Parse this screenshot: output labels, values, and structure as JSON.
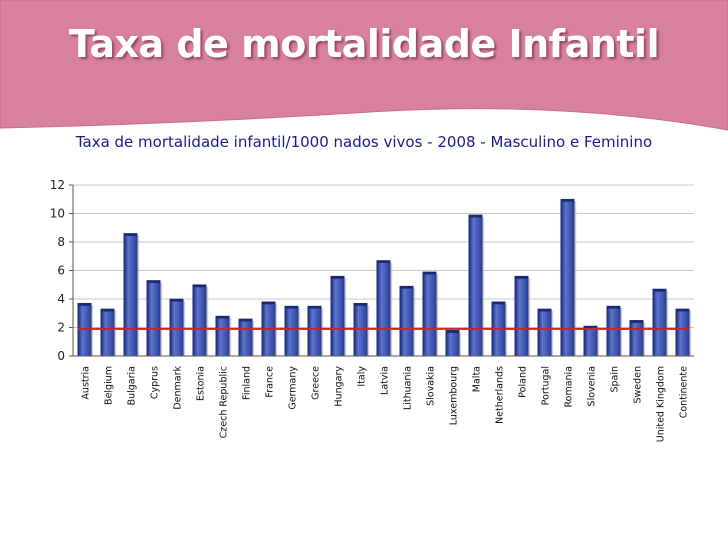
{
  "slide": {
    "title": "Taxa de mortalidade Infantil"
  },
  "colors": {
    "banner": "#d8819f",
    "banner_edge": "#c46a8c",
    "bar_fill": "#2a3f9a",
    "bar_highlight": "#5d75cf",
    "bar_top": "#1a2a70",
    "reference_line": "#c0282d",
    "title_text": "#1a1a8c",
    "grid": "#c8c8c8"
  },
  "chart_data": {
    "type": "bar",
    "title": "Taxa de mortalidade infantil/1000 nados vivos - 2008 - Masculino e Feminino",
    "xlabel": "",
    "ylabel": "",
    "ylim": [
      0,
      12
    ],
    "yticks": [
      "0",
      "2",
      "4",
      "6",
      "8",
      "10",
      "12"
    ],
    "grid": true,
    "categories": [
      "Austria",
      "Belgium",
      "Bulgaria",
      "Cyprus",
      "Denmark",
      "Estonia",
      "Czech Republic",
      "Finland",
      "France",
      "Germany",
      "Greece",
      "Hungary",
      "Italy",
      "Latvia",
      "Lithuania",
      "Slovakia",
      "Luxembourg",
      "Malta",
      "Netherlands",
      "Poland",
      "Portugal",
      "Romania",
      "Slovenia",
      "Spain",
      "Sweden",
      "United Kingdom",
      "Continente"
    ],
    "values": [
      3.7,
      3.3,
      8.6,
      5.3,
      4.0,
      5.0,
      2.8,
      2.6,
      3.8,
      3.5,
      3.5,
      5.6,
      3.7,
      6.7,
      4.9,
      5.9,
      1.8,
      9.9,
      3.8,
      5.6,
      3.3,
      11.0,
      2.1,
      3.5,
      2.5,
      4.7,
      3.3
    ],
    "reference_line": {
      "value": 1.9
    }
  }
}
